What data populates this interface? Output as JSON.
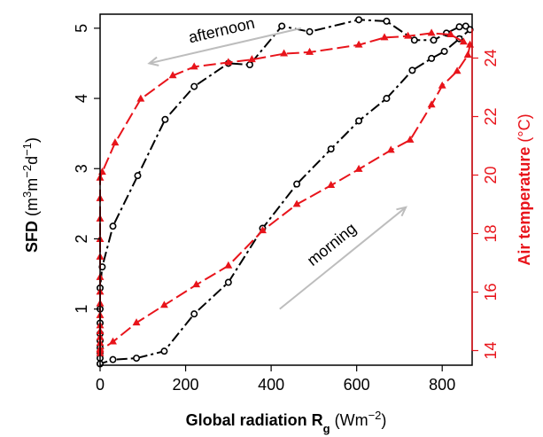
{
  "chart_data": {
    "type": "line",
    "x_axis": {
      "label_bold": "Global radiation R",
      "label_subscript": "g",
      "label_units_prefix": " (Wm",
      "label_units_sup": "−2",
      "label_units_suffix": ")",
      "range": [
        0,
        870
      ],
      "ticks": [
        0,
        200,
        400,
        600,
        800
      ]
    },
    "y_axis_left": {
      "label_bold": "SFD",
      "label_units_prefix": " (m",
      "label_units_sup1": "3",
      "label_units_mid1": "m",
      "label_units_sup2": "−2",
      "label_units_mid2": "d",
      "label_units_sup3": "−1",
      "label_units_suffix": ")",
      "range": [
        0.2,
        5.2
      ],
      "ticks": [
        1,
        2,
        3,
        4,
        5
      ],
      "color": "#000000"
    },
    "y_axis_right": {
      "label_bold": "Air temperature",
      "label_units": " (°C)",
      "range": [
        13.5,
        25.5
      ],
      "ticks": [
        14,
        16,
        18,
        20,
        22,
        24
      ],
      "color": "#e8141b"
    },
    "series": [
      {
        "axis": "left",
        "color": "#000000",
        "marker": "circle",
        "dash": "dashdot",
        "points": [
          [
            0,
            0.22
          ],
          [
            0,
            0.3
          ],
          [
            0,
            0.38
          ],
          [
            0,
            0.45
          ],
          [
            0,
            0.55
          ],
          [
            0,
            0.65
          ],
          [
            0,
            0.8
          ],
          [
            0,
            1.0
          ],
          [
            0,
            1.3
          ],
          [
            5,
            1.6
          ],
          [
            30,
            2.18
          ],
          [
            88,
            2.9
          ],
          [
            152,
            3.7
          ],
          [
            220,
            4.17
          ],
          [
            300,
            4.5
          ],
          [
            350,
            4.48
          ],
          [
            425,
            5.03
          ],
          [
            490,
            4.95
          ],
          [
            605,
            5.12
          ],
          [
            670,
            5.1
          ],
          [
            735,
            4.83
          ],
          [
            780,
            4.83
          ],
          [
            810,
            4.93
          ],
          [
            840,
            5.02
          ],
          [
            855,
            5.03
          ],
          [
            865,
            4.98
          ],
          [
            840,
            4.85
          ],
          [
            805,
            4.67
          ],
          [
            775,
            4.57
          ],
          [
            730,
            4.4
          ],
          [
            670,
            4.0
          ],
          [
            605,
            3.68
          ],
          [
            540,
            3.28
          ],
          [
            460,
            2.78
          ],
          [
            380,
            2.15
          ],
          [
            300,
            1.38
          ],
          [
            220,
            0.93
          ],
          [
            150,
            0.4
          ],
          [
            85,
            0.3
          ],
          [
            30,
            0.28
          ],
          [
            0,
            0.22
          ]
        ]
      },
      {
        "axis": "right",
        "color": "#e8141b",
        "marker": "triangle",
        "dash": "longdash",
        "points": [
          [
            0,
            13.9
          ],
          [
            0,
            14.05
          ],
          [
            0,
            14.25
          ],
          [
            0,
            14.45
          ],
          [
            0,
            14.65
          ],
          [
            0,
            14.85
          ],
          [
            0,
            15.2
          ],
          [
            0,
            15.6
          ],
          [
            0,
            16.0
          ],
          [
            0,
            16.5
          ],
          [
            0,
            17.2
          ],
          [
            0,
            17.8
          ],
          [
            0,
            18.5
          ],
          [
            0,
            19.2
          ],
          [
            0,
            19.9
          ],
          [
            5,
            20.1
          ],
          [
            35,
            21.1
          ],
          [
            95,
            22.6
          ],
          [
            170,
            23.4
          ],
          [
            220,
            23.7
          ],
          [
            300,
            23.85
          ],
          [
            355,
            23.95
          ],
          [
            430,
            24.15
          ],
          [
            490,
            24.2
          ],
          [
            605,
            24.45
          ],
          [
            665,
            24.7
          ],
          [
            720,
            24.75
          ],
          [
            775,
            24.85
          ],
          [
            820,
            24.8
          ],
          [
            850,
            24.55
          ],
          [
            865,
            24.45
          ],
          [
            860,
            24.1
          ],
          [
            835,
            23.55
          ],
          [
            800,
            23.05
          ],
          [
            775,
            22.4
          ],
          [
            725,
            21.2
          ],
          [
            680,
            20.85
          ],
          [
            605,
            20.2
          ],
          [
            540,
            19.65
          ],
          [
            460,
            19.0
          ],
          [
            380,
            18.1
          ],
          [
            300,
            16.9
          ],
          [
            225,
            16.25
          ],
          [
            150,
            15.55
          ],
          [
            85,
            14.95
          ],
          [
            30,
            14.3
          ],
          [
            0,
            14.0
          ]
        ]
      }
    ],
    "annotations": [
      {
        "text": "afternoon",
        "arrow_from": [
          470,
          5.0
        ],
        "arrow_to": [
          115,
          4.5
        ],
        "arrow_color": "#bdbdbd"
      },
      {
        "text": "morning",
        "arrow_from": [
          420,
          1.0
        ],
        "arrow_to": [
          715,
          2.45
        ],
        "arrow_color": "#bdbdbd"
      }
    ],
    "legend": "none",
    "grid": false
  }
}
